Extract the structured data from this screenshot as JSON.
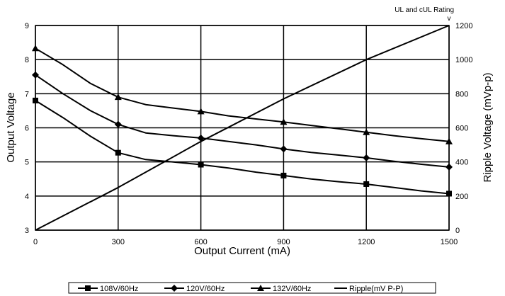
{
  "chart_data": {
    "type": "line",
    "title": "",
    "xlabel": "Output Current (mA)",
    "ylabel": "Output Voltage",
    "y2label": "Ripple Voltage (mVp-p)",
    "xlim": [
      0,
      1500
    ],
    "ylim": [
      3,
      9
    ],
    "y2lim": [
      0,
      1200
    ],
    "xticks": [
      0,
      300,
      600,
      900,
      1200,
      1500
    ],
    "yticks": [
      3,
      4,
      5,
      6,
      7,
      8,
      9
    ],
    "y2ticks": [
      0,
      200,
      400,
      600,
      800,
      1000,
      1200
    ],
    "grid": true,
    "legend_position": "bottom",
    "annotation": {
      "text": "UL and cUL Rating",
      "marker": "v"
    },
    "series": [
      {
        "name": "108V/60Hz",
        "axis": "left",
        "marker": "square",
        "x": [
          0,
          100,
          200,
          300,
          400,
          500,
          600,
          700,
          800,
          900,
          1000,
          1100,
          1200,
          1300,
          1400,
          1500
        ],
        "values": [
          6.8,
          6.3,
          5.75,
          5.27,
          5.07,
          5.0,
          4.92,
          4.82,
          4.7,
          4.6,
          4.5,
          4.42,
          4.35,
          4.25,
          4.15,
          4.07
        ],
        "marker_indices": [
          0,
          3,
          6,
          9,
          12,
          15
        ]
      },
      {
        "name": "120V/60Hz",
        "axis": "left",
        "marker": "diamond",
        "x": [
          0,
          100,
          200,
          300,
          400,
          500,
          600,
          700,
          800,
          900,
          1000,
          1100,
          1200,
          1300,
          1400,
          1500
        ],
        "values": [
          7.55,
          7.0,
          6.5,
          6.1,
          5.85,
          5.77,
          5.7,
          5.6,
          5.5,
          5.38,
          5.28,
          5.2,
          5.12,
          5.02,
          4.93,
          4.85
        ],
        "marker_indices": [
          0,
          3,
          6,
          9,
          12,
          15
        ]
      },
      {
        "name": "132V/60Hz",
        "axis": "left",
        "marker": "triangle",
        "x": [
          0,
          100,
          200,
          300,
          400,
          500,
          600,
          700,
          800,
          900,
          1000,
          1100,
          1200,
          1300,
          1400,
          1500
        ],
        "values": [
          8.33,
          7.85,
          7.3,
          6.9,
          6.68,
          6.58,
          6.48,
          6.35,
          6.26,
          6.17,
          6.07,
          5.97,
          5.87,
          5.77,
          5.68,
          5.6
        ],
        "marker_indices": [
          0,
          3,
          6,
          9,
          12,
          15
        ]
      },
      {
        "name": "Ripple(mV P-P)",
        "axis": "right",
        "marker": "none",
        "x": [
          0,
          300,
          600,
          900,
          1200,
          1500
        ],
        "values": [
          0,
          250,
          520,
          770,
          1000,
          1200
        ],
        "marker_indices": []
      }
    ]
  },
  "colors": {
    "line": "#000000",
    "background": "#ffffff"
  }
}
